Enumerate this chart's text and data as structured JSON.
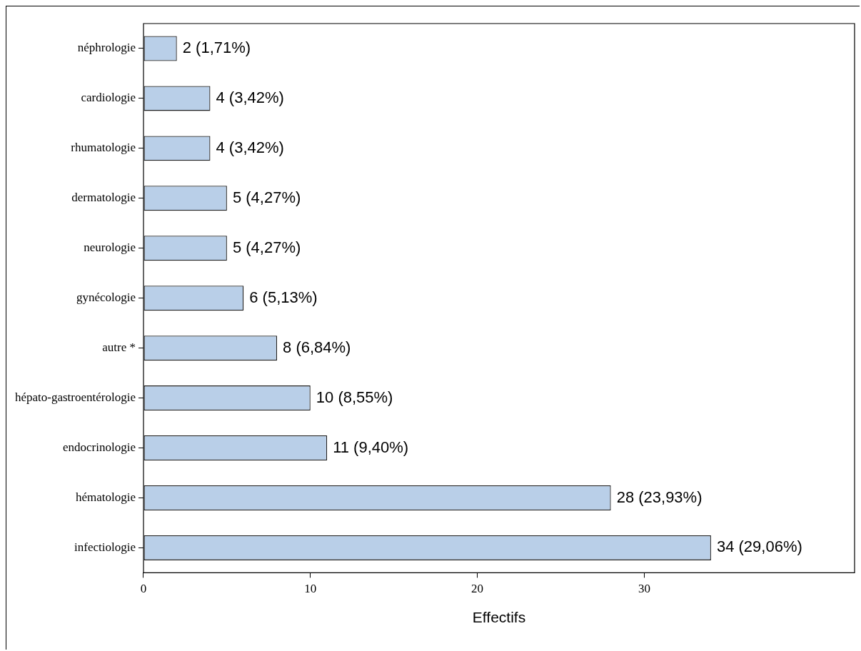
{
  "chart_data": {
    "type": "bar",
    "orientation": "horizontal",
    "xlabel": "Effectifs",
    "categories": [
      "néphrologie",
      "cardiologie",
      "rhumatologie",
      "dermatologie",
      "neurologie",
      "gynécologie",
      "autre *",
      "hépato-gastroentérologie",
      "endocrinologie",
      "hématologie",
      "infectiologie"
    ],
    "values": [
      2,
      4,
      4,
      5,
      5,
      6,
      8,
      10,
      11,
      28,
      34
    ],
    "value_labels": [
      "2 (1,71%)",
      "4 (3,42%)",
      "4 (3,42%)",
      "5 (4,27%)",
      "5 (4,27%)",
      "6 (5,13%)",
      "8 (6,84%)",
      "10 (8,55%)",
      "11 (9,40%)",
      "28 (23,93%)",
      "34 (29,06%)"
    ],
    "color": "#b9cfe8",
    "xlim": [
      0,
      42.6
    ],
    "xticks": [
      0,
      10,
      20,
      30
    ]
  }
}
